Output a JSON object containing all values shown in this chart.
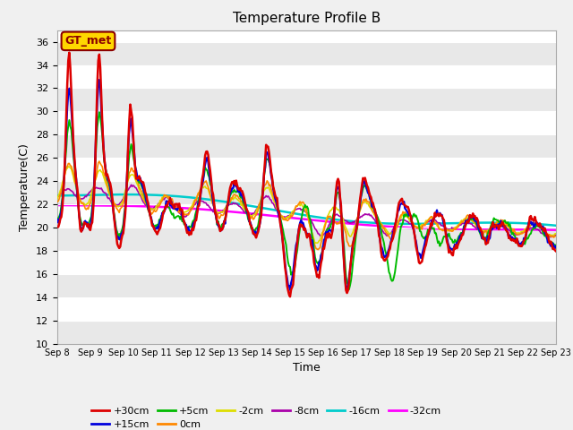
{
  "title": "Temperature Profile B",
  "xlabel": "Time",
  "ylabel": "Temperature(C)",
  "ylim": [
    10,
    37
  ],
  "yticks": [
    10,
    12,
    14,
    16,
    18,
    20,
    22,
    24,
    26,
    28,
    30,
    32,
    34,
    36
  ],
  "xtick_labels": [
    "Sep 8",
    "Sep 9",
    "Sep 10",
    "Sep 11",
    "Sep 12",
    "Sep 13",
    "Sep 14",
    "Sep 15",
    "Sep 16",
    "Sep 17",
    "Sep 18",
    "Sep 19",
    "Sep 20",
    "Sep 21",
    "Sep 22",
    "Sep 23"
  ],
  "series_colors": {
    "+30cm": "#dd0000",
    "+15cm": "#0000dd",
    "+5cm": "#00bb00",
    "0cm": "#ff8800",
    "-2cm": "#dddd00",
    "-8cm": "#aa00aa",
    "-16cm": "#00cccc",
    "-32cm": "#ff00ff"
  },
  "legend_label": "GT_met",
  "fig_bg": "#f0f0f0",
  "plot_bg": "#ffffff",
  "grid_color": "#dddddd",
  "stripe_color": "#e8e8e8"
}
